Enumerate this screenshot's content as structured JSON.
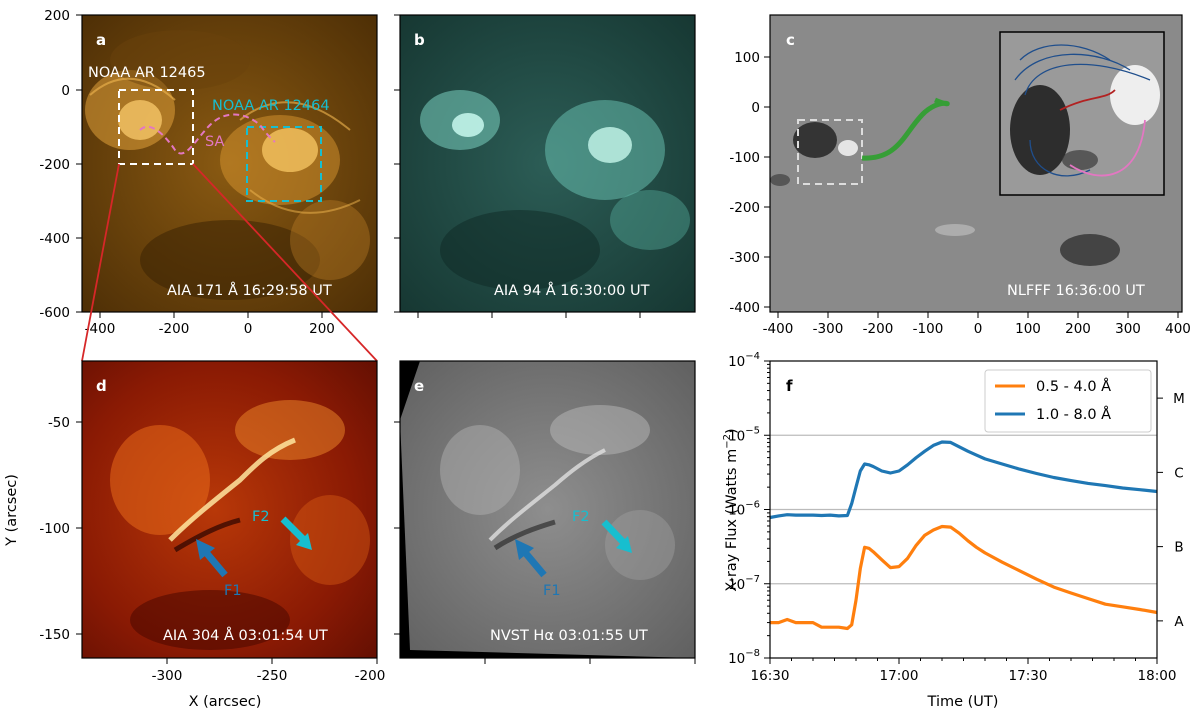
{
  "panels": {
    "a": {
      "label": "a",
      "caption": "AIA 171 Å 16:29:58 UT",
      "ar_white": "NOAA AR 12465",
      "ar_cyan": "NOAA AR 12464",
      "sa": "SA",
      "xticks": [
        "-400",
        "-200",
        "0",
        "200"
      ],
      "yticks": [
        "200",
        "0",
        "-200",
        "-400",
        "-600"
      ]
    },
    "b": {
      "label": "b",
      "caption": "AIA 94 Å 16:30:00 UT"
    },
    "c": {
      "label": "c",
      "caption": "NLFFF 16:36:00 UT",
      "xticks": [
        "-400",
        "-300",
        "-200",
        "-100",
        "0",
        "100",
        "200",
        "300",
        "400"
      ],
      "yticks": [
        "100",
        "0",
        "-100",
        "-200",
        "-300",
        "-400"
      ]
    },
    "d": {
      "label": "d",
      "caption": "AIA 304 Å 03:01:54 UT",
      "f1": "F1",
      "f2": "F2",
      "xticks": [
        "-300",
        "-250",
        "-200"
      ],
      "yticks": [
        "-50",
        "-100",
        "-150"
      ],
      "xlabel": "X (arcsec)",
      "ylabel": "Y (arcsec)"
    },
    "e": {
      "label": "e",
      "caption": "NVST Hα 03:01:55 UT",
      "f1": "F1",
      "f2": "F2"
    },
    "f": {
      "label": "f"
    }
  },
  "colors": {
    "orange": "#ff7f0e",
    "blue": "#1f77b4",
    "cyan": "#17becf",
    "pink": "#e377c2",
    "grid": "#bbbbbb"
  },
  "chart_data": {
    "type": "line",
    "title": "",
    "xlabel": "Time (UT)",
    "ylabel": "X-ray Flux (Watts m⁻²)",
    "ylabel_main": "X-ray Flux (Watts m",
    "ylabel_sup": "−2",
    "ylabel_close": ")",
    "yscale": "log",
    "ylim": [
      1e-08,
      0.0001
    ],
    "xlim": [
      0,
      90
    ],
    "x_unit": "minutes after 16:30 UT",
    "xtick_values": [
      0,
      30,
      60,
      90
    ],
    "xtick_labels": [
      "16:30",
      "17:00",
      "17:30",
      "18:00"
    ],
    "ytick_labels": [
      {
        "base": "10",
        "exp": "−8"
      },
      {
        "base": "10",
        "exp": "−7"
      },
      {
        "base": "10",
        "exp": "−6"
      },
      {
        "base": "10",
        "exp": "−5"
      },
      {
        "base": "10",
        "exp": "−4"
      }
    ],
    "goes_classes": [
      "A",
      "B",
      "C",
      "M"
    ],
    "legend_position": "top-right",
    "series": [
      {
        "name": "0.5 - 4.0 Å",
        "color": "#ff7f0e",
        "x": [
          0,
          2,
          4,
          6,
          8,
          10,
          12,
          14,
          16,
          18,
          19,
          20,
          21,
          22,
          23,
          24,
          26,
          28,
          30,
          32,
          34,
          36,
          38,
          40,
          42,
          44,
          46,
          48,
          50,
          54,
          58,
          62,
          66,
          70,
          74,
          78,
          82,
          86,
          90
        ],
        "y": [
          3e-08,
          3e-08,
          3.3e-08,
          3e-08,
          3e-08,
          3e-08,
          2.6e-08,
          2.6e-08,
          2.6e-08,
          2.5e-08,
          2.8e-08,
          6e-08,
          1.6e-07,
          3.1e-07,
          3e-07,
          2.7e-07,
          2.1e-07,
          1.65e-07,
          1.7e-07,
          2.2e-07,
          3.3e-07,
          4.5e-07,
          5.3e-07,
          5.9e-07,
          5.8e-07,
          4.8e-07,
          3.8e-07,
          3.1e-07,
          2.6e-07,
          1.95e-07,
          1.5e-07,
          1.15e-07,
          9e-08,
          7.5e-08,
          6.3e-08,
          5.3e-08,
          4.9e-08,
          4.5e-08,
          4.1e-08
        ]
      },
      {
        "name": "1.0 - 8.0 Å",
        "color": "#1f77b4",
        "x": [
          0,
          2,
          4,
          6,
          8,
          10,
          12,
          14,
          16,
          18,
          19,
          20,
          21,
          22,
          23,
          24,
          26,
          28,
          30,
          32,
          34,
          36,
          38,
          40,
          42,
          44,
          46,
          48,
          50,
          54,
          58,
          62,
          66,
          70,
          74,
          78,
          82,
          86,
          90
        ],
        "y": [
          7.8e-07,
          8.2e-07,
          8.5e-07,
          8.4e-07,
          8.4e-07,
          8.4e-07,
          8.3e-07,
          8.4e-07,
          8.2e-07,
          8.3e-07,
          1.2e-06,
          2e-06,
          3.3e-06,
          4.1e-06,
          4e-06,
          3.8e-06,
          3.3e-06,
          3.1e-06,
          3.3e-06,
          4e-06,
          5e-06,
          6.1e-06,
          7.3e-06,
          8.1e-06,
          8e-06,
          7e-06,
          6.1e-06,
          5.4e-06,
          4.8e-06,
          4.1e-06,
          3.5e-06,
          3.05e-06,
          2.7e-06,
          2.45e-06,
          2.25e-06,
          2.1e-06,
          1.95e-06,
          1.85e-06,
          1.75e-06
        ]
      }
    ]
  }
}
